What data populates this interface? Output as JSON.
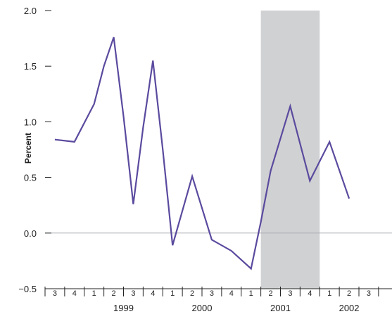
{
  "chart_data": {
    "type": "line",
    "title": "",
    "xlabel": "",
    "ylabel": "Percent",
    "ylim": [
      -0.5,
      2.0
    ],
    "y_ticks": [
      "2.0",
      "1.5",
      "1.0",
      "0.5",
      "0.0",
      "−0.5"
    ],
    "y_tick_values": [
      2.0,
      1.5,
      1.0,
      0.5,
      0.0,
      -0.5
    ],
    "quarters": [
      "3",
      "4",
      "1",
      "2",
      "3",
      "4",
      "1",
      "2",
      "3",
      "4",
      "1",
      "2",
      "3",
      "4",
      "1",
      "2",
      "3"
    ],
    "years": [
      {
        "label": "1999",
        "start_index": 2,
        "end_index": 5
      },
      {
        "label": "2000",
        "start_index": 6,
        "end_index": 9
      },
      {
        "label": "2001",
        "start_index": 10,
        "end_index": 13
      },
      {
        "label": "2002",
        "start_index": 14,
        "end_index": 16
      }
    ],
    "shaded_region": {
      "start_index": 11,
      "end_index": 13,
      "color": "#d0d1d3"
    },
    "series": [
      {
        "color": "#5b4a9e",
        "points": [
          {
            "x": 0.5,
            "y": 0.84
          },
          {
            "x": 1.5,
            "y": 0.82
          },
          {
            "x": 2.5,
            "y": 1.16
          },
          {
            "x": 3.0,
            "y": 1.5
          },
          {
            "x": 3.5,
            "y": 1.76
          },
          {
            "x": 4.0,
            "y": 1.05
          },
          {
            "x": 4.5,
            "y": 0.26
          },
          {
            "x": 5.0,
            "y": 0.95
          },
          {
            "x": 5.5,
            "y": 1.55
          },
          {
            "x": 6.0,
            "y": 0.75
          },
          {
            "x": 6.5,
            "y": -0.11
          },
          {
            "x": 7.5,
            "y": 0.51
          },
          {
            "x": 8.5,
            "y": -0.06
          },
          {
            "x": 9.5,
            "y": -0.16
          },
          {
            "x": 10.5,
            "y": -0.32
          },
          {
            "x": 11.0,
            "y": 0.1
          },
          {
            "x": 11.5,
            "y": 0.56
          },
          {
            "x": 12.5,
            "y": 1.14
          },
          {
            "x": 13.5,
            "y": 0.47
          },
          {
            "x": 14.5,
            "y": 0.82
          },
          {
            "x": 15.5,
            "y": 0.31
          }
        ]
      }
    ],
    "grid": false,
    "zero_line": true
  },
  "colors": {
    "line": "#5b4a9e",
    "shade": "#d0d1d3",
    "zero_line": "#a8aab0",
    "axis": "#222222"
  }
}
